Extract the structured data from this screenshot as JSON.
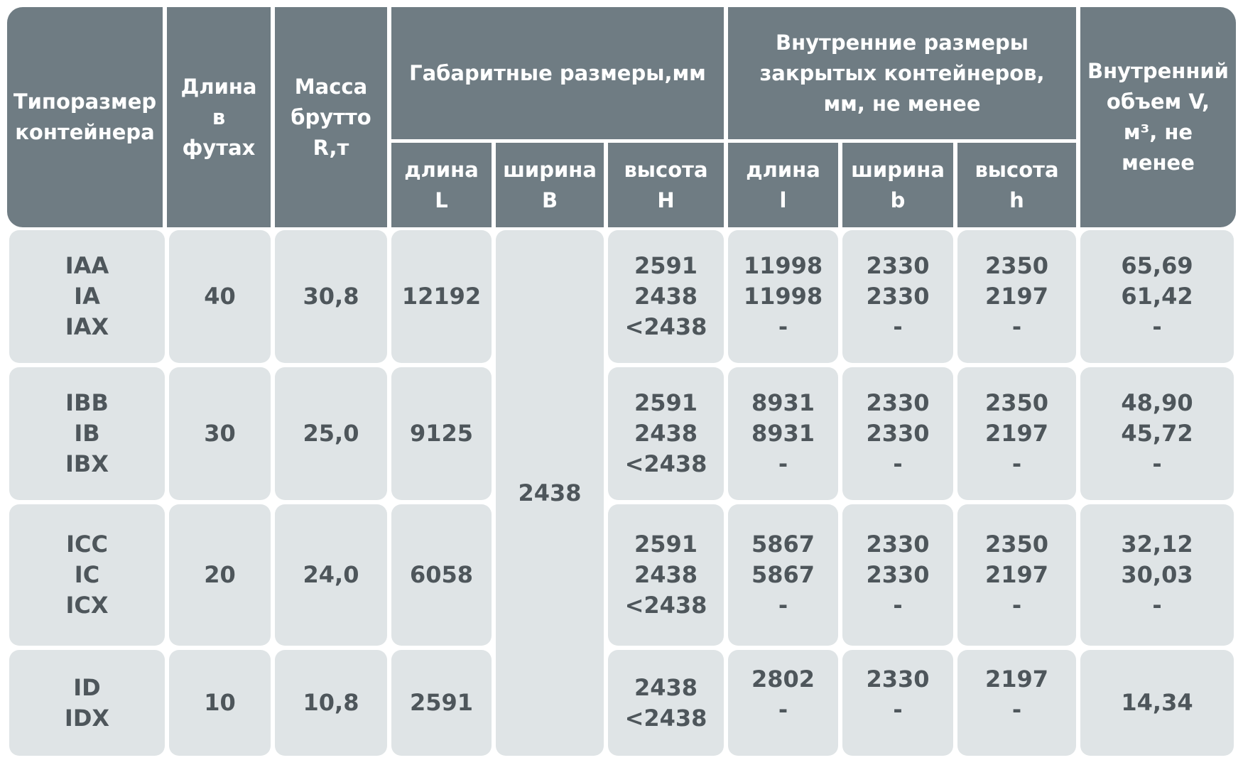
{
  "headers": {
    "size": "Типоразмер\nконтейнера",
    "length_ft": "Длина\nв\nфутах",
    "gross_mass": "Масса\nбрутто\nR,т",
    "overall": "Габаритные размеры,мм",
    "overall_l": "длина\nL",
    "overall_b": "ширина\nB",
    "overall_h": "высота\nH",
    "internal": "Внутренние размеры\nзакрытых контейнеров,\nмм, не менее",
    "internal_l": "длина\nl",
    "internal_b": "ширина\nb",
    "internal_h": "высота\nh",
    "volume": "Внутренний\nобъем V,\nм³, не\nменее"
  },
  "shared_width": "2438",
  "rows": [
    {
      "types": "IAA\nIA\nIAX",
      "feet": "40",
      "mass": "30,8",
      "L": "12192",
      "H": "2591\n2438\n<2438",
      "l": "11998\n11998\n-",
      "b": "2330\n2330\n-",
      "h": "2350\n2197\n-",
      "V": "65,69\n61,42\n-"
    },
    {
      "types": "IBB\nIB\nIBX",
      "feet": "30",
      "mass": "25,0",
      "L": "9125",
      "H": "2591\n2438\n<2438",
      "l": "8931\n8931\n-",
      "b": "2330\n2330\n-",
      "h": "2350\n2197\n-",
      "V": "48,90\n45,72\n-"
    },
    {
      "types": "ICC\nIC\nICX",
      "feet": "20",
      "mass": "24,0",
      "L": "6058",
      "H": "2591\n2438\n<2438",
      "l": "5867\n5867\n-",
      "b": "2330\n2330\n-",
      "h": "2350\n2197\n-",
      "V": "32,12\n30,03\n-"
    },
    {
      "types": "ID\nIDX",
      "feet": "10",
      "mass": "10,8",
      "L": "2591",
      "H": "2438\n<2438",
      "l": "2802\n-",
      "b": "2330\n-",
      "h": "2197\n-",
      "V": "14,34"
    }
  ],
  "colors": {
    "header_bg": "#6f7c83",
    "cell_bg": "#dfe4e6",
    "cell_text": "#4e565b"
  }
}
